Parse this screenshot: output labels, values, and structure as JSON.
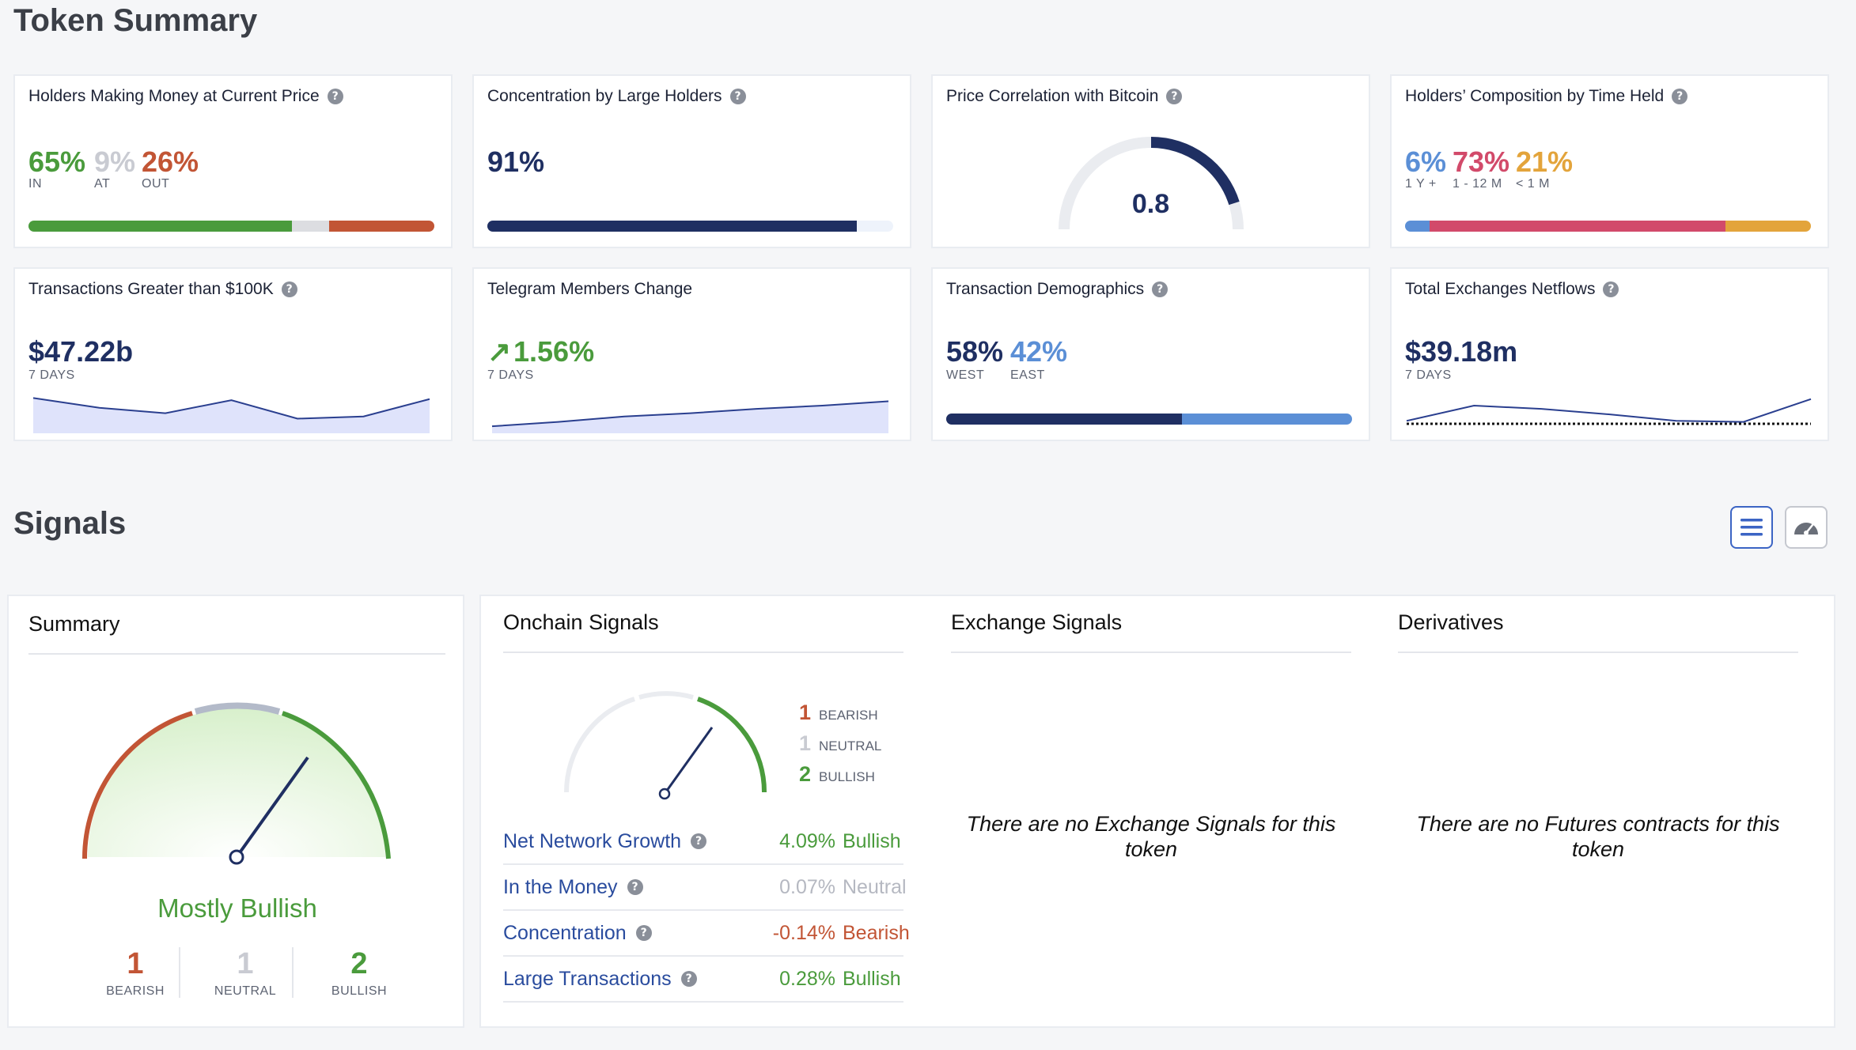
{
  "token_summary": {
    "title": "Token Summary",
    "holders_money": {
      "title": "Holders Making Money at Current Price",
      "in_value": "65%",
      "in_label": "IN",
      "at_value": "9%",
      "at_label": "AT",
      "out_value": "26%",
      "out_label": "OUT",
      "bar": [
        65,
        9,
        26
      ]
    },
    "concentration": {
      "title": "Concentration by Large Holders",
      "value": "91%",
      "bar": 91
    },
    "btc_correlation": {
      "title": "Price Correlation with Bitcoin",
      "value": "0.8",
      "level": 0.8
    },
    "composition": {
      "title": "Holders’ Composition by Time Held",
      "v1": "6%",
      "l1": "1 Y +",
      "v2": "73%",
      "l2": "1 - 12 M",
      "v3": "21%",
      "l3": "< 1 M",
      "bar": [
        6,
        73,
        21
      ]
    },
    "large_tx": {
      "title": "Transactions Greater than $100K",
      "value": "$47.22b",
      "period": "7 DAYS",
      "spark": [
        31,
        22,
        17,
        29,
        12,
        14,
        30
      ]
    },
    "telegram": {
      "title": "Telegram Members Change",
      "value": "1.56%",
      "period": "7 DAYS",
      "arrow": "↗",
      "spark": [
        5,
        9,
        14,
        17,
        21,
        24,
        28
      ]
    },
    "demographics": {
      "title": "Transaction Demographics",
      "west_value": "58%",
      "west_label": "WEST",
      "east_value": "42%",
      "east_label": "EAST",
      "bar": [
        58,
        42
      ]
    },
    "netflows": {
      "title": "Total Exchanges Netflows",
      "value": "$39.18m",
      "period": "7 DAYS",
      "spark": [
        10,
        24,
        21,
        16,
        10,
        9,
        30
      ]
    }
  },
  "signals": {
    "title": "Signals",
    "list_view_icon": "list-icon",
    "gauge_view_icon": "gauge-icon",
    "summary": {
      "title": "Summary",
      "verdict": "Mostly Bullish",
      "bearish_count": "1",
      "bearish_label": "BEARISH",
      "neutral_count": "1",
      "neutral_label": "NEUTRAL",
      "bullish_count": "2",
      "bullish_label": "BULLISH",
      "needle_level": 0.78
    },
    "onchain": {
      "title": "Onchain Signals",
      "bearish_count": "1",
      "bearish_label": "BEARISH",
      "neutral_count": "1",
      "neutral_label": "NEUTRAL",
      "bullish_count": "2",
      "bullish_label": "BULLISH",
      "needle_level": 0.7,
      "rows": [
        {
          "name": "Net Network Growth",
          "value": "4.09%",
          "status": "Bullish",
          "color": "#4a9b3c"
        },
        {
          "name": "In the Money",
          "value": "0.07%",
          "status": "Neutral",
          "color": "#b5b8c1"
        },
        {
          "name": "Concentration",
          "value": "-0.14%",
          "status": "Bearish",
          "color": "#c25535"
        },
        {
          "name": "Large Transactions",
          "value": "0.28%",
          "status": "Bullish",
          "color": "#4a9b3c"
        }
      ]
    },
    "exchange": {
      "title": "Exchange Signals",
      "empty": "There are no Exchange Signals for this token"
    },
    "derivatives": {
      "title": "Derivatives",
      "empty": "There are no Futures contracts for this token"
    }
  },
  "colors": {
    "green": "#4a9b3c",
    "red": "#c25535",
    "navy": "#1f2f62",
    "light_blue": "#5b8fd6",
    "pink": "#d24a6a",
    "orange": "#e3a43b",
    "gray": "#c9cbd2"
  }
}
